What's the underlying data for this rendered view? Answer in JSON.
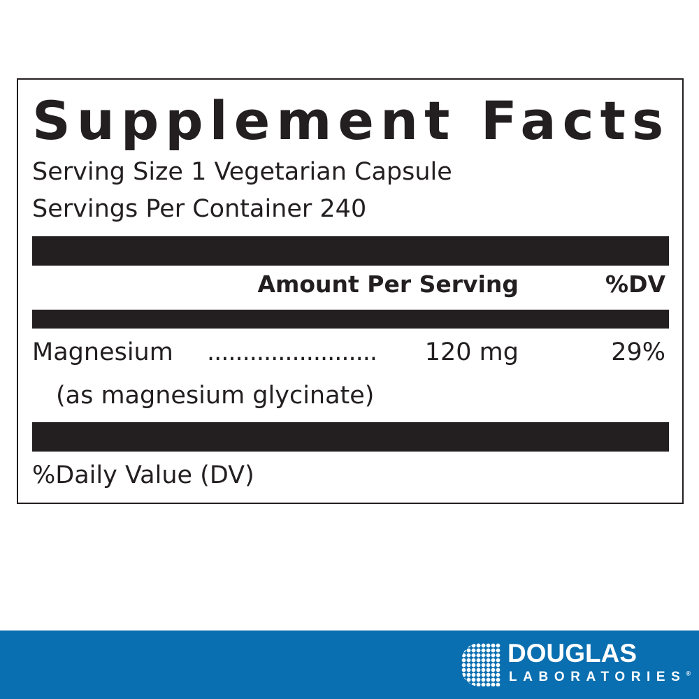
{
  "title": "Supplement Facts",
  "serving_size": "Serving Size 1 Vegetarian Capsule",
  "servings_per_container": "Servings Per Container 240",
  "header": {
    "amount": "Amount Per Serving",
    "dv": "%DV"
  },
  "rows": [
    {
      "name": "Magnesium",
      "dots": "........................",
      "amount": "120 mg",
      "dv": "29%",
      "note": "(as magnesium glycinate)"
    }
  ],
  "footer": "%Daily Value (DV)",
  "brand": {
    "name": "DOUGLAS",
    "sub": "LABORATORIES",
    "registered": "®",
    "color": "#0a6fb0"
  }
}
